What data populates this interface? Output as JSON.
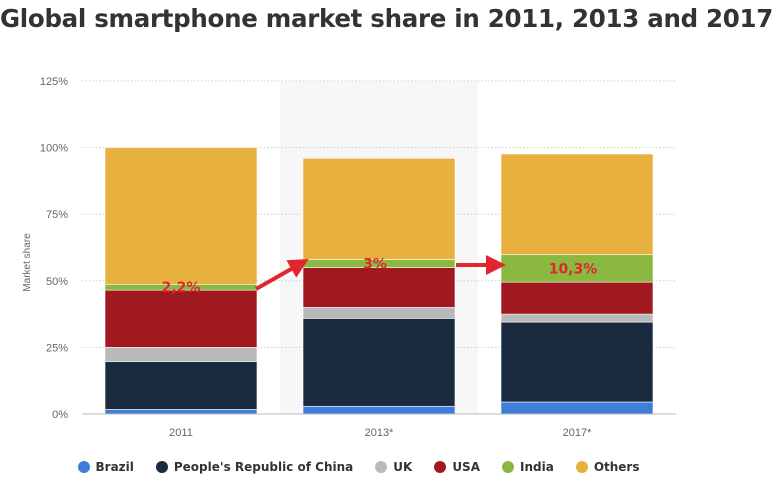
{
  "chart_data": {
    "type": "bar",
    "stacked": true,
    "title": "Global smartphone market share in 2011, 2013 and 2017",
    "ylabel": "Market share",
    "xlabel": "",
    "ylim": [
      0,
      125
    ],
    "yticks": [
      "0%",
      "25%",
      "50%",
      "75%",
      "100%",
      "125%"
    ],
    "grid": true,
    "legend_position": "bottom",
    "categories": [
      "2011",
      "2013*",
      "2017*"
    ],
    "series": [
      {
        "name": "Brazil",
        "color": "#3f7ed8",
        "values": [
          1.7,
          2.9,
          4.5
        ]
      },
      {
        "name": "People's Republic of China",
        "color": "#1a2b40",
        "values": [
          18.0,
          33.0,
          30.0
        ]
      },
      {
        "name": "UK",
        "color": "#b9b9b9",
        "values": [
          5.3,
          4.1,
          3.0
        ]
      },
      {
        "name": "USA",
        "color": "#a0191e",
        "values": [
          21.5,
          15.0,
          12.0
        ]
      },
      {
        "name": "India",
        "color": "#8ab840",
        "values": [
          2.2,
          3.0,
          10.3
        ]
      },
      {
        "name": "Others",
        "color": "#e8b13d",
        "values": [
          51.3,
          38.0,
          37.8
        ]
      }
    ],
    "annotations": [
      {
        "text": "2,2%",
        "category": "2011"
      },
      {
        "text": "3%",
        "category": "2013*"
      },
      {
        "text": "10,3%",
        "category": "2017*"
      }
    ]
  }
}
